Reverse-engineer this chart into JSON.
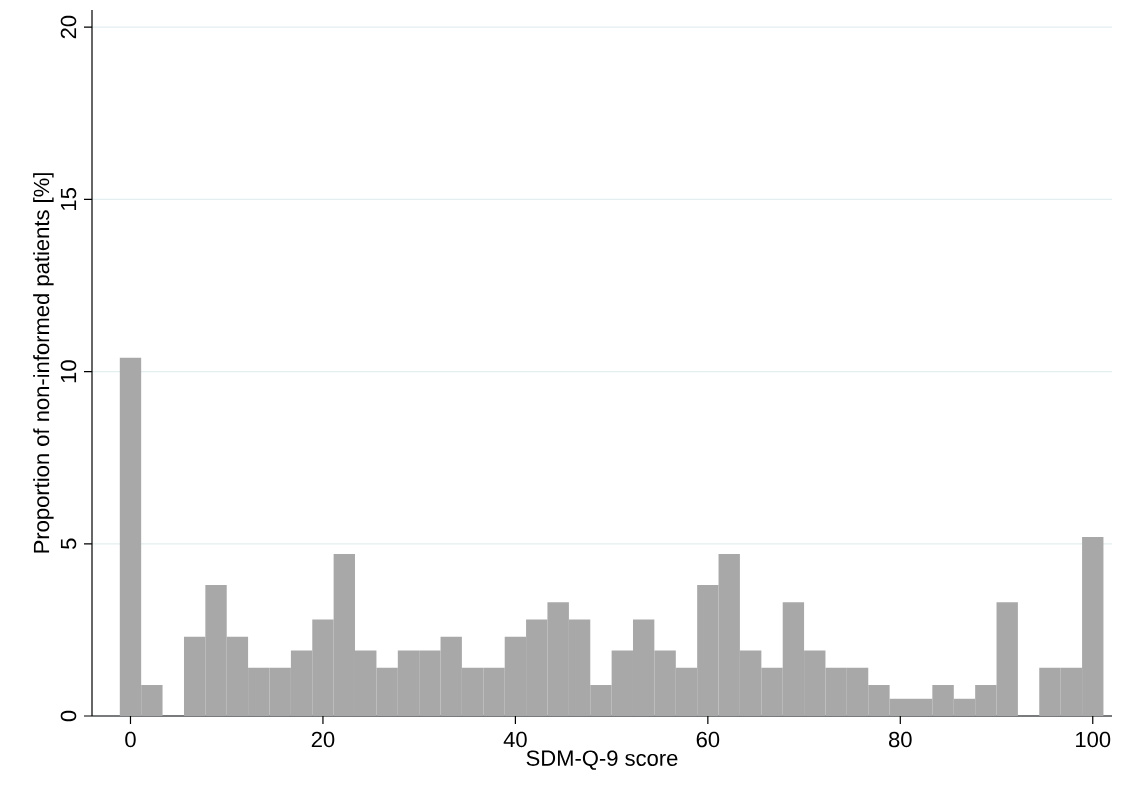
{
  "chart_data": {
    "type": "histogram",
    "xlabel": "SDM-Q-9 score",
    "ylabel": "Proportion of non-informed patients [%]",
    "bins": [
      -1.11,
      1.11,
      3.33,
      5.56,
      7.78,
      10,
      12.22,
      14.44,
      16.67,
      18.89,
      21.11,
      23.33,
      25.56,
      27.78,
      30,
      32.22,
      34.44,
      36.67,
      38.89,
      41.11,
      43.33,
      45.56,
      47.78,
      50,
      52.22,
      54.44,
      56.67,
      58.89,
      61.11,
      63.33,
      65.56,
      67.78,
      70,
      72.22,
      74.44,
      76.67,
      78.89,
      81.11,
      83.33,
      85.56,
      87.78,
      90,
      92.22,
      94.44,
      96.67,
      98.89,
      101.11
    ],
    "values": [
      10.4,
      0.9,
      0,
      2.3,
      3.8,
      2.3,
      1.4,
      1.4,
      1.9,
      2.8,
      4.7,
      1.9,
      1.4,
      1.9,
      1.9,
      2.3,
      1.4,
      1.4,
      2.3,
      2.8,
      3.3,
      2.8,
      0.9,
      1.9,
      2.8,
      1.9,
      1.4,
      3.8,
      4.7,
      1.9,
      1.4,
      3.3,
      1.9,
      1.4,
      1.4,
      0.9,
      0.5,
      0.5,
      0.9,
      0.5,
      0.9,
      3.3,
      0,
      1.4,
      1.4,
      5.2
    ],
    "color": "#a8a8a8",
    "xlim": [
      -4,
      102
    ],
    "ylim": [
      0,
      20.5
    ],
    "xticks": [
      0,
      20,
      40,
      60,
      80,
      100
    ],
    "yticks": [
      0,
      5,
      10,
      15,
      20
    ],
    "grid": "y"
  }
}
